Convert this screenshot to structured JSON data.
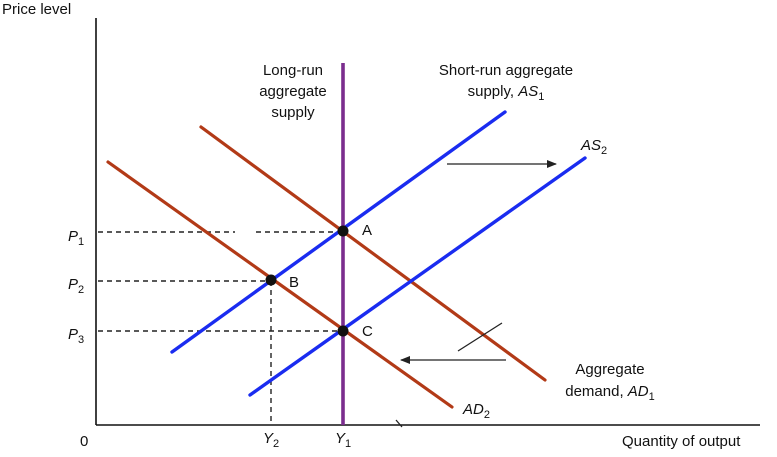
{
  "axes": {
    "y_label": "Price level",
    "x_label": "Quantity of output",
    "origin": "0"
  },
  "ticks": {
    "p1": "P",
    "p1_sub": "1",
    "p2": "P",
    "p2_sub": "2",
    "p3": "P",
    "p3_sub": "3",
    "y2": "Y",
    "y2_sub": "2",
    "y1": "Y",
    "y1_sub": "1"
  },
  "curves": {
    "lras": {
      "line1": "Long-run",
      "line2": "aggregate",
      "line3": "supply",
      "color": "#7b2d8e"
    },
    "as1": {
      "line1": "Short-run aggregate",
      "line2_prefix": "supply, ",
      "line2_name": "AS",
      "line2_sub": "1",
      "color": "#1a2cf0"
    },
    "as2": {
      "name": "AS",
      "sub": "2",
      "color": "#1a2cf0"
    },
    "ad1": {
      "line1": "Aggregate",
      "line2_prefix": "demand, ",
      "line2_name": "AD",
      "line2_sub": "1",
      "color": "#b23a17"
    },
    "ad2": {
      "name": "AD",
      "sub": "2",
      "color": "#b23a17"
    }
  },
  "points": {
    "a": "A",
    "b": "B",
    "c": "C"
  }
}
